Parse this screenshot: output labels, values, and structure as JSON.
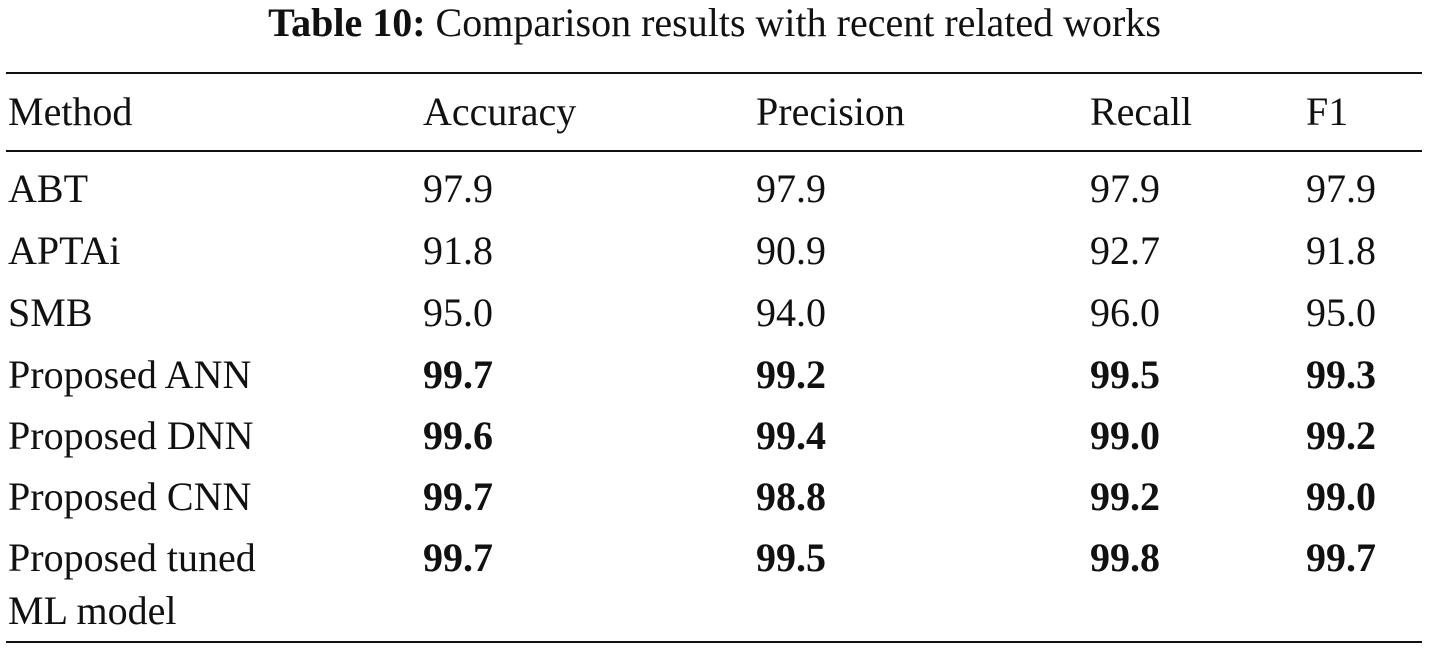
{
  "caption": {
    "label": "Table 10:",
    "text": "Comparison results with recent related works"
  },
  "table": {
    "headers": [
      "Method",
      "Accuracy",
      "Precision",
      "Recall",
      "F1"
    ],
    "rows": [
      {
        "method": "ABT",
        "method_cont": "",
        "values": [
          "97.9",
          "97.9",
          "97.9",
          "97.9"
        ],
        "bold": false
      },
      {
        "method": "APTAi",
        "method_cont": "",
        "values": [
          "91.8",
          "90.9",
          "92.7",
          "91.8"
        ],
        "bold": false
      },
      {
        "method": "SMB",
        "method_cont": "",
        "values": [
          "95.0",
          "94.0",
          "96.0",
          "95.0"
        ],
        "bold": false
      },
      {
        "method": "Proposed ANN",
        "method_cont": "",
        "values": [
          "99.7",
          "99.2",
          "99.5",
          "99.3"
        ],
        "bold": true
      },
      {
        "method": "Proposed DNN",
        "method_cont": "",
        "values": [
          "99.6",
          "99.4",
          "99.0",
          "99.2"
        ],
        "bold": true
      },
      {
        "method": "Proposed CNN",
        "method_cont": "",
        "values": [
          "99.7",
          "98.8",
          "99.2",
          "99.0"
        ],
        "bold": true
      },
      {
        "method": "Proposed tuned",
        "method_cont": "ML model",
        "values": [
          "99.7",
          "99.5",
          "99.8",
          "99.7"
        ],
        "bold": true
      }
    ]
  }
}
